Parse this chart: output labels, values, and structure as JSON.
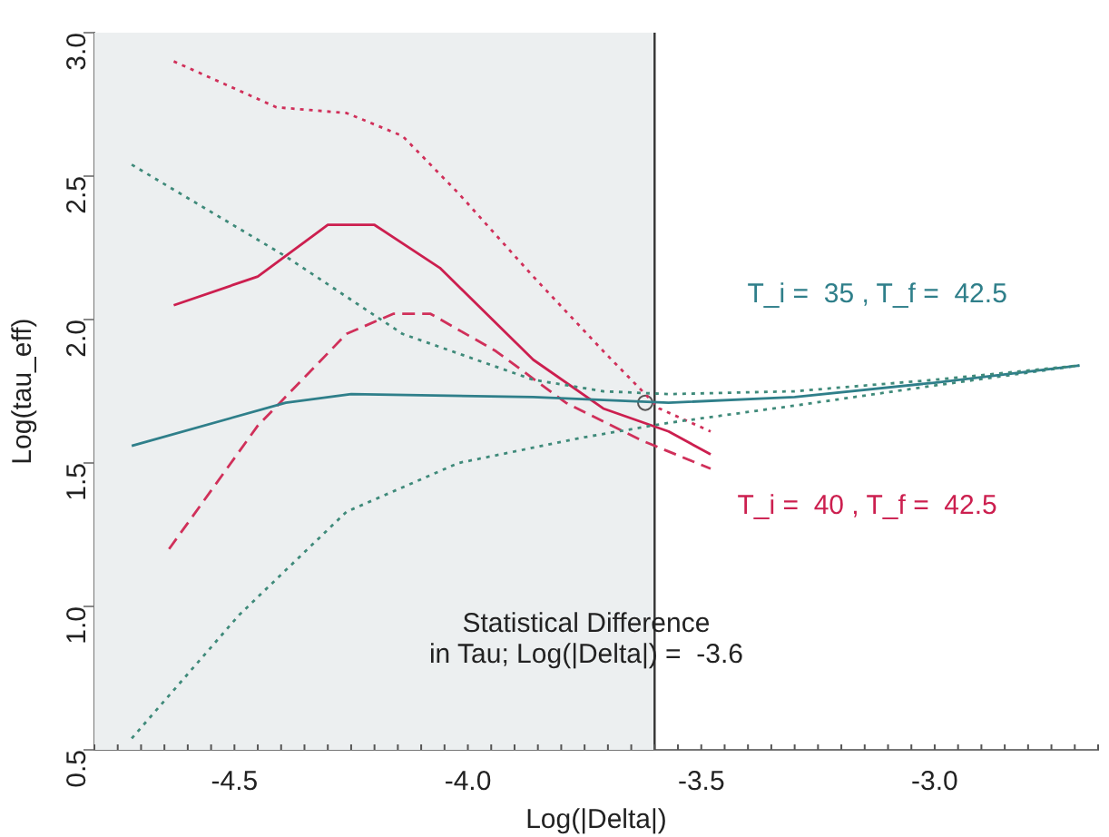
{
  "chart_data": {
    "type": "line",
    "xlabel": "Log(|Delta|)",
    "ylabel": "Log(tau_eff)",
    "xlim": [
      -4.8,
      -2.65
    ],
    "ylim": [
      0.5,
      3.0
    ],
    "xticks": [
      -4.5,
      {
        "value": -4,
        "label": "-4.0"
      },
      -3.5,
      {
        "value": -3,
        "label": "-3.0"
      }
    ],
    "yticks": [
      0.5,
      {
        "value": 1,
        "label": "1.0"
      },
      1.5,
      {
        "value": 2,
        "label": "2.0"
      },
      2.5,
      {
        "value": 3,
        "label": "3.0"
      }
    ],
    "grid": false,
    "legend": false,
    "marker": "none",
    "series": [
      {
        "color": "#3f8a7a",
        "line_style": "dotted",
        "x": [
          -4.72,
          -4.39,
          -4.14,
          -3.86,
          -3.71,
          -3.57,
          -3.3,
          -3.0,
          -2.69
        ],
        "values": [
          2.54,
          2.22,
          1.95,
          1.79,
          1.75,
          1.74,
          1.75,
          1.79,
          1.84
        ]
      },
      {
        "name": "T_i =  35 , T_f =  42.5",
        "color": "#2f7f8a",
        "line_style": "solid",
        "x": [
          -4.72,
          -4.39,
          -4.25,
          -3.86,
          -3.57,
          -3.3,
          -3.0,
          -2.69
        ],
        "values": [
          1.56,
          1.71,
          1.74,
          1.73,
          1.71,
          1.73,
          1.78,
          1.84
        ]
      },
      {
        "color": "#3f8a7a",
        "line_style": "dotted",
        "x": [
          -4.72,
          -4.49,
          -4.26,
          -4.02,
          -3.75,
          -3.57,
          -3.3,
          -3.0,
          -2.69
        ],
        "values": [
          0.54,
          0.97,
          1.33,
          1.5,
          1.59,
          1.64,
          1.7,
          1.77,
          1.84
        ]
      },
      {
        "color": "#d0305a",
        "line_style": "dotted",
        "x": [
          -4.63,
          -4.41,
          -4.26,
          -4.14,
          -4.02,
          -3.86,
          -3.71,
          -3.59,
          -3.48
        ],
        "values": [
          2.9,
          2.74,
          2.72,
          2.64,
          2.44,
          2.15,
          1.89,
          1.69,
          1.61
        ]
      },
      {
        "name": "T_i =  40 , T_f =  42.5",
        "color": "#cc1f4f",
        "line_style": "solid",
        "x": [
          -4.63,
          -4.45,
          -4.3,
          -4.2,
          -4.06,
          -3.86,
          -3.71,
          -3.57,
          -3.48
        ],
        "values": [
          2.05,
          2.15,
          2.33,
          2.33,
          2.18,
          1.86,
          1.69,
          1.61,
          1.53
        ]
      },
      {
        "color": "#d0305a",
        "line_style": "dashed",
        "x": [
          -4.64,
          -4.45,
          -4.26,
          -4.16,
          -4.08,
          -3.94,
          -3.79,
          -3.63,
          -3.48
        ],
        "values": [
          1.2,
          1.63,
          1.95,
          2.02,
          2.02,
          1.89,
          1.71,
          1.58,
          1.48
        ]
      },
      {
        "type": "scatter",
        "color": "#555555",
        "marker": "circle",
        "x": [
          -3.62
        ],
        "values": [
          1.71
        ]
      }
    ],
    "ref_lines": [
      {
        "axis": "x",
        "value": -3.6,
        "color": "#333333"
      }
    ],
    "bands": [
      {
        "axis": "x",
        "from": -4.8,
        "to": -3.6,
        "color": "#eceff0"
      }
    ],
    "annotations": [
      "Statistical Difference",
      "in Tau; Log(|Delta|) =  -3.6"
    ]
  }
}
